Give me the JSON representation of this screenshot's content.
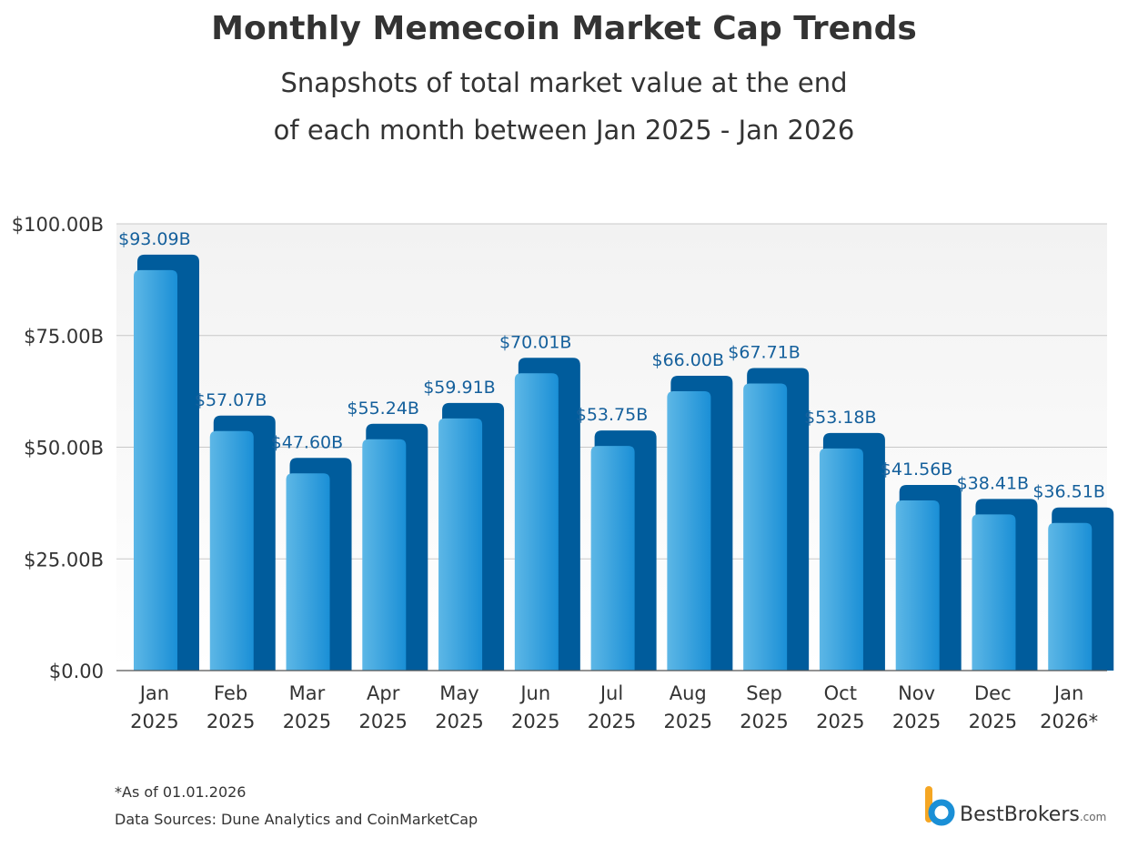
{
  "chart_data": {
    "type": "bar3d",
    "title": "Monthly Memecoin Market Cap Trends",
    "subtitle": [
      "Snapshots of total market value at the end",
      "of each month between Jan 2025 - Jan 2026"
    ],
    "categories": [
      [
        "Jan",
        "2025"
      ],
      [
        "Feb",
        "2025"
      ],
      [
        "Mar",
        "2025"
      ],
      [
        "Apr",
        "2025"
      ],
      [
        "May",
        "2025"
      ],
      [
        "Jun",
        "2025"
      ],
      [
        "Jul",
        "2025"
      ],
      [
        "Aug",
        "2025"
      ],
      [
        "Sep",
        "2025"
      ],
      [
        "Oct",
        "2025"
      ],
      [
        "Nov",
        "2025"
      ],
      [
        "Dec",
        "2025"
      ],
      [
        "Jan",
        "2026*"
      ]
    ],
    "values": [
      93.09,
      57.07,
      47.6,
      55.24,
      59.91,
      70.01,
      53.75,
      66.0,
      67.71,
      53.18,
      41.56,
      38.41,
      36.51
    ],
    "value_labels": [
      "$93.09B",
      "$57.07B",
      "$47.60B",
      "$55.24B",
      "$59.91B",
      "$70.01B",
      "$53.75B",
      "$66.00B",
      "$67.71B",
      "$53.18B",
      "$41.56B",
      "$38.41B",
      "$36.51B"
    ],
    "color": "#1a8fd6",
    "side_color": "#005c9c",
    "label_color": "#15609c",
    "ylim": [
      0,
      100
    ],
    "yticks": [
      {
        "value": 0,
        "label": "$0.00"
      },
      {
        "value": 25,
        "label": "$25.00B"
      },
      {
        "value": 50,
        "label": "$50.00B"
      },
      {
        "value": 75,
        "label": "$75.00B"
      },
      {
        "value": 100,
        "label": "$100.00B"
      }
    ],
    "grid": true,
    "footnote": "*As of 01.01.2026",
    "source": "Data Sources: Dune Analytics and CoinMarketCap",
    "brand": "BestBrokers",
    "brand_suffix": ".com"
  }
}
